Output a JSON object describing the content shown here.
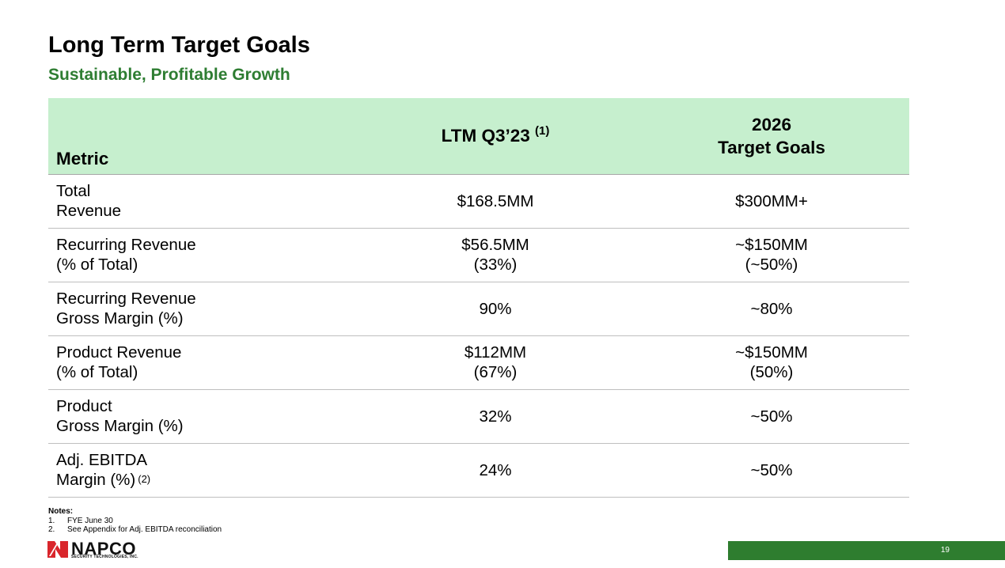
{
  "slide": {
    "title": "Long Term Target Goals",
    "subtitle": "Sustainable, Profitable Growth",
    "page_number": "19"
  },
  "colors": {
    "accent_green": "#2e7d32",
    "header_fill": "#c6efce",
    "footer_bar": "#2e7d2f",
    "logo_red": "#d9262c"
  },
  "table": {
    "headers": {
      "metric": "Metric",
      "ltm": "LTM Q3’23",
      "ltm_note": "(1)",
      "target_line1": "2026",
      "target_line2": "Target Goals"
    },
    "rows": [
      {
        "metric_line1": "Total",
        "metric_line2": "Revenue",
        "metric_note": "",
        "ltm_line1": "$168.5MM",
        "ltm_line2": "",
        "target_line1": "$300MM+",
        "target_line2": ""
      },
      {
        "metric_line1": "Recurring Revenue",
        "metric_line2": "(% of Total)",
        "metric_note": "",
        "ltm_line1": "$56.5MM",
        "ltm_line2": "(33%)",
        "target_line1": "~$150MM",
        "target_line2": "(~50%)"
      },
      {
        "metric_line1": "Recurring Revenue",
        "metric_line2": "Gross Margin (%)",
        "metric_note": "",
        "ltm_line1": "90%",
        "ltm_line2": "",
        "target_line1": "~80%",
        "target_line2": ""
      },
      {
        "metric_line1": "Product Revenue",
        "metric_line2": "(% of Total)",
        "metric_note": "",
        "ltm_line1": "$112MM",
        "ltm_line2": "(67%)",
        "target_line1": "~$150MM",
        "target_line2": "(50%)"
      },
      {
        "metric_line1": "Product",
        "metric_line2": "Gross Margin (%)",
        "metric_note": "",
        "ltm_line1": "32%",
        "ltm_line2": "",
        "target_line1": "~50%",
        "target_line2": ""
      },
      {
        "metric_line1": "Adj. EBITDA",
        "metric_line2": "Margin (%)",
        "metric_note": "(2)",
        "ltm_line1": "24%",
        "ltm_line2": "",
        "target_line1": "~50%",
        "target_line2": ""
      }
    ]
  },
  "notes": {
    "title": "Notes:",
    "items": [
      {
        "num": "1.",
        "text": "FYE June 30"
      },
      {
        "num": "2.",
        "text": "See Appendix for Adj. EBITDA reconciliation"
      }
    ]
  },
  "logo": {
    "name": "NAPCO",
    "tagline": "SECURITY TECHNOLOGIES, INC."
  }
}
